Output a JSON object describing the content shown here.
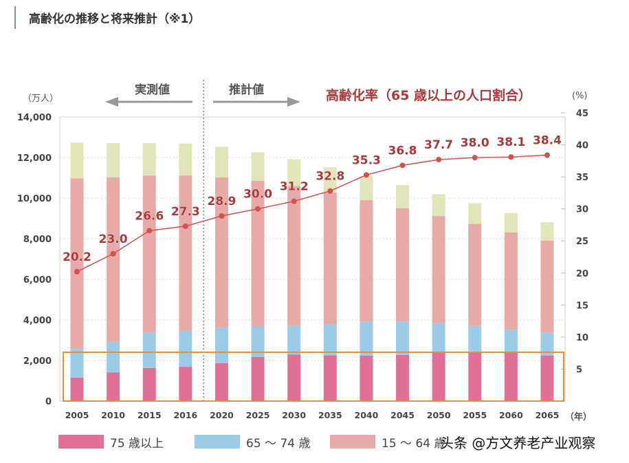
{
  "title": "高齢化の推移と将来推計（※1）",
  "annotations": {
    "actual": "実測値",
    "projected": "推計値",
    "left_unit": "（万人）",
    "right_unit": "(%)",
    "x_unit": "（年）",
    "rate_title": "高齢化率（65 歳以上の人口割合）"
  },
  "watermark": "头条 @方文养老产业观察",
  "colors": {
    "age75plus": "#e07098",
    "age65_74": "#9ccbe8",
    "age15_64": "#e8aaa8",
    "age0_14": "#e1e5b9",
    "line": "#d05252",
    "rate_label": "#a83a3a",
    "highlight_box": "#e8913a"
  },
  "chart_data": {
    "type": "bar",
    "stacked": true,
    "categories": [
      "2005",
      "2010",
      "2015",
      "2016",
      "2020",
      "2025",
      "2030",
      "2035",
      "2040",
      "2045",
      "2050",
      "2055",
      "2060",
      "2065"
    ],
    "series": [
      {
        "name": "75 歳以上",
        "values": [
          1160,
          1407,
          1632,
          1691,
          1872,
          2180,
          2288,
          2260,
          2239,
          2277,
          2417,
          2446,
          2387,
          2248
        ]
      },
      {
        "name": "65 ～ 74 歳",
        "values": [
          1407,
          1517,
          1752,
          1768,
          1747,
          1497,
          1428,
          1522,
          1681,
          1643,
          1424,
          1258,
          1133,
          1133
        ]
      },
      {
        "name": "15 ～ 64 歳",
        "values": [
          8409,
          8103,
          7728,
          7656,
          7406,
          7170,
          6875,
          6494,
          5978,
          5584,
          5275,
          5028,
          4793,
          4529
        ]
      },
      {
        "values": [
          1759,
          1684,
          1595,
          1578,
          1507,
          1407,
          1321,
          1246,
          1194,
          1138,
          1077,
          1012,
          951,
          898
        ]
      }
    ],
    "line_series": {
      "axis": "right",
      "values": [
        20.2,
        23.0,
        26.6,
        27.3,
        28.9,
        30.0,
        31.2,
        32.8,
        35.3,
        36.8,
        37.7,
        38.0,
        38.1,
        38.4
      ]
    },
    "y_left": {
      "range": [
        0,
        14000
      ],
      "ticks": [
        "0",
        "2,000",
        "4,000",
        "6,000",
        "8,000",
        "10,000",
        "12,000",
        "14,000"
      ]
    },
    "y_right": {
      "range": [
        0,
        45
      ],
      "ticks": [
        "5",
        "10",
        "15",
        "20",
        "25",
        "30",
        "35",
        "40",
        "45"
      ]
    },
    "grid": true,
    "divider_between": [
      "2016",
      "2020"
    ],
    "highlight": "75 歳以上 and 65 ～ 74 歳 region up to ~2,500",
    "legend_position": "bottom"
  }
}
